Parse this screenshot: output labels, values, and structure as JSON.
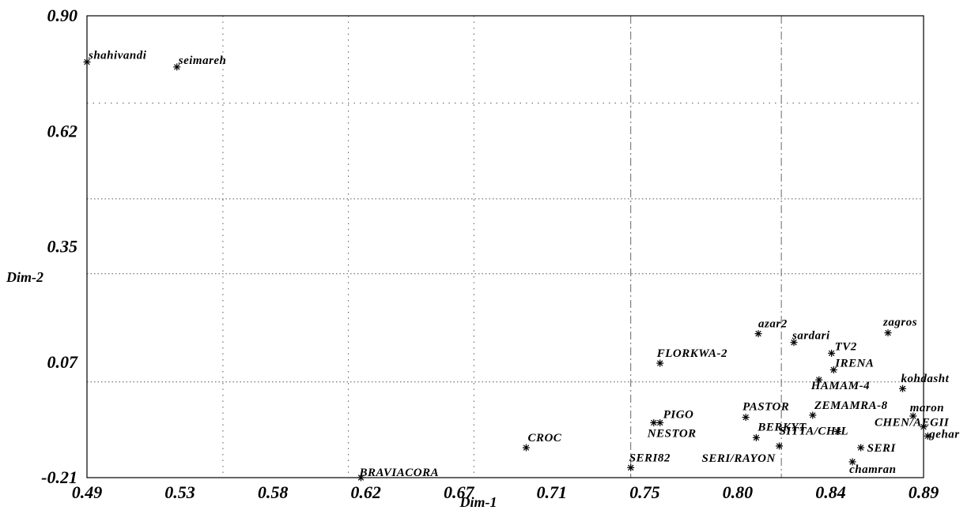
{
  "chart_data": {
    "type": "scatter",
    "xlabel": "Dim-1",
    "ylabel": "Dim-2",
    "xlim": [
      0.49,
      0.89
    ],
    "ylim": [
      -0.21,
      0.9
    ],
    "x_ticks": [
      "0.49",
      "0.53",
      "0.58",
      "0.62",
      "0.67",
      "0.71",
      "0.75",
      "0.80",
      "0.84",
      "0.89"
    ],
    "y_ticks": [
      "0.90",
      "0.62",
      "0.35",
      "0.07",
      "-0.21"
    ],
    "grid": true,
    "points": [
      {
        "label": "shahivandi",
        "x": 0.49,
        "y": 0.789
      },
      {
        "label": "seimareh",
        "x": 0.533,
        "y": 0.777
      },
      {
        "label": "BRAVIACORA",
        "x": 0.621,
        "y": -0.21
      },
      {
        "label": "CROC",
        "x": 0.7,
        "y": -0.138
      },
      {
        "label": "SERI82",
        "x": 0.75,
        "y": -0.186
      },
      {
        "label": "FLORKWA-2",
        "x": 0.764,
        "y": 0.065
      },
      {
        "label": "PIGO",
        "x": 0.764,
        "y": -0.078
      },
      {
        "label": "NESTOR",
        "x": 0.761,
        "y": -0.078
      },
      {
        "label": "azar2",
        "x": 0.811,
        "y": 0.136
      },
      {
        "label": "sardari",
        "x": 0.828,
        "y": 0.115
      },
      {
        "label": "TV2",
        "x": 0.846,
        "y": 0.089
      },
      {
        "label": "IRENA",
        "x": 0.847,
        "y": 0.049
      },
      {
        "label": "zagros",
        "x": 0.873,
        "y": 0.138
      },
      {
        "label": "HAMAM-4",
        "x": 0.84,
        "y": 0.025
      },
      {
        "label": "kohdasht",
        "x": 0.88,
        "y": 0.004
      },
      {
        "label": "PASTOR",
        "x": 0.805,
        "y": -0.065
      },
      {
        "label": "ZEMAMRA-8",
        "x": 0.837,
        "y": -0.06
      },
      {
        "label": "maron",
        "x": 0.885,
        "y": -0.062
      },
      {
        "label": "BERKYT",
        "x": 0.81,
        "y": -0.114
      },
      {
        "label": "SERI/RAYON",
        "x": 0.821,
        "y": -0.134
      },
      {
        "label": "CHEN/AEGII",
        "x": 0.89,
        "y": -0.088
      },
      {
        "label": "gehar",
        "x": 0.892,
        "y": -0.11
      },
      {
        "label": "SITTA/CHIL",
        "x": 0.849,
        "y": -0.099
      },
      {
        "label": "SERI",
        "x": 0.86,
        "y": -0.138
      },
      {
        "label": "chamran",
        "x": 0.856,
        "y": -0.172
      }
    ]
  }
}
